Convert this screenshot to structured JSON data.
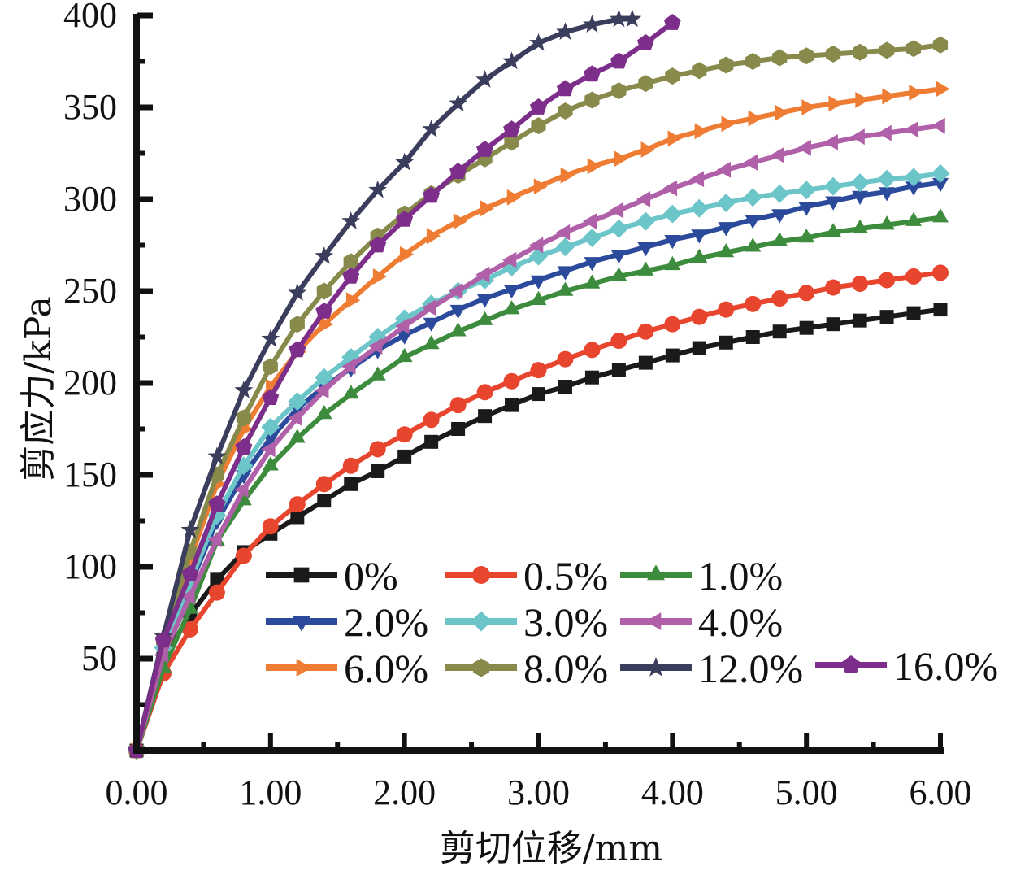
{
  "chart_data": {
    "type": "line",
    "title": "",
    "xlabel": "剪切位移/mm",
    "ylabel": "剪应力/kPa",
    "xlim": [
      0,
      6
    ],
    "ylim": [
      0,
      400
    ],
    "xticks": [
      "0.00",
      "1.00",
      "2.00",
      "3.00",
      "4.00",
      "5.00",
      "6.00"
    ],
    "xtick_values": [
      0,
      1,
      2,
      3,
      4,
      5,
      6
    ],
    "yticks": [
      "50",
      "100",
      "150",
      "200",
      "250",
      "300",
      "350",
      "400"
    ],
    "ytick_values": [
      50,
      100,
      150,
      200,
      250,
      300,
      350,
      400
    ],
    "grid": false,
    "legend_position": "bottom-center",
    "series": [
      {
        "name": "0%",
        "color": "#1a1a1a",
        "marker": "square",
        "x": [
          0,
          0.2,
          0.4,
          0.6,
          0.8,
          1.0,
          1.2,
          1.4,
          1.6,
          1.8,
          2.0,
          2.2,
          2.4,
          2.6,
          2.8,
          3.0,
          3.2,
          3.4,
          3.6,
          3.8,
          4.0,
          4.2,
          4.4,
          4.6,
          4.8,
          5.0,
          5.2,
          5.4,
          5.6,
          5.8,
          6.0
        ],
        "y": [
          0,
          50,
          74,
          93,
          108,
          118,
          127,
          136,
          145,
          152,
          160,
          168,
          175,
          182,
          188,
          194,
          198,
          203,
          207,
          211,
          215,
          219,
          222,
          225,
          228,
          230,
          232,
          234,
          236,
          238,
          240
        ]
      },
      {
        "name": "0.5%",
        "color": "#e8452f",
        "marker": "circle",
        "x": [
          0,
          0.2,
          0.4,
          0.6,
          0.8,
          1.0,
          1.2,
          1.4,
          1.6,
          1.8,
          2.0,
          2.2,
          2.4,
          2.6,
          2.8,
          3.0,
          3.2,
          3.4,
          3.6,
          3.8,
          4.0,
          4.2,
          4.4,
          4.6,
          4.8,
          5.0,
          5.2,
          5.4,
          5.6,
          5.8,
          6.0
        ],
        "y": [
          0,
          42,
          66,
          86,
          106,
          122,
          134,
          145,
          155,
          164,
          172,
          180,
          188,
          195,
          201,
          207,
          213,
          218,
          223,
          228,
          232,
          236,
          240,
          243,
          246,
          249,
          252,
          254,
          256,
          258,
          260
        ]
      },
      {
        "name": "1.0%",
        "color": "#3d8c3d",
        "marker": "triangle-up",
        "x": [
          0,
          0.2,
          0.4,
          0.6,
          0.8,
          1.0,
          1.2,
          1.4,
          1.6,
          1.8,
          2.0,
          2.2,
          2.4,
          2.6,
          2.8,
          3.0,
          3.2,
          3.4,
          3.6,
          3.8,
          4.0,
          4.2,
          4.4,
          4.6,
          4.8,
          5.0,
          5.2,
          5.4,
          5.6,
          5.8,
          6.0
        ],
        "y": [
          0,
          45,
          77,
          114,
          136,
          155,
          170,
          183,
          194,
          204,
          214,
          221,
          228,
          234,
          240,
          245,
          250,
          254,
          258,
          261,
          264,
          268,
          271,
          274,
          277,
          279,
          282,
          284,
          286,
          288,
          290
        ]
      },
      {
        "name": "2.0%",
        "color": "#2b4a9c",
        "marker": "triangle-down",
        "x": [
          0,
          0.2,
          0.4,
          0.6,
          0.8,
          1.0,
          1.2,
          1.4,
          1.6,
          1.8,
          2.0,
          2.2,
          2.4,
          2.6,
          2.8,
          3.0,
          3.2,
          3.4,
          3.6,
          3.8,
          4.0,
          4.2,
          4.4,
          4.6,
          4.8,
          5.0,
          5.2,
          5.4,
          5.6,
          5.8,
          6.0
        ],
        "y": [
          0,
          58,
          90,
          125,
          150,
          170,
          186,
          198,
          208,
          218,
          226,
          233,
          240,
          246,
          251,
          256,
          261,
          266,
          270,
          274,
          278,
          281,
          285,
          289,
          292,
          296,
          299,
          302,
          304,
          307,
          309
        ]
      },
      {
        "name": "3.0%",
        "color": "#6cc5c8",
        "marker": "diamond",
        "x": [
          0,
          0.2,
          0.4,
          0.6,
          0.8,
          1.0,
          1.2,
          1.4,
          1.6,
          1.8,
          2.0,
          2.2,
          2.4,
          2.6,
          2.8,
          3.0,
          3.2,
          3.4,
          3.6,
          3.8,
          4.0,
          4.2,
          4.4,
          4.6,
          4.8,
          5.0,
          5.2,
          5.4,
          5.6,
          5.8,
          6.0
        ],
        "y": [
          0,
          56,
          92,
          128,
          155,
          176,
          190,
          203,
          214,
          225,
          235,
          243,
          250,
          256,
          263,
          269,
          274,
          279,
          284,
          288,
          292,
          295,
          298,
          301,
          303,
          305,
          307,
          309,
          311,
          312,
          314
        ]
      },
      {
        "name": "4.0%",
        "color": "#b060a8",
        "marker": "triangle-left",
        "x": [
          0,
          0.2,
          0.4,
          0.6,
          0.8,
          1.0,
          1.2,
          1.4,
          1.6,
          1.8,
          2.0,
          2.2,
          2.4,
          2.6,
          2.8,
          3.0,
          3.2,
          3.4,
          3.6,
          3.8,
          4.0,
          4.2,
          4.4,
          4.6,
          4.8,
          5.0,
          5.2,
          5.4,
          5.6,
          5.8,
          6.0
        ],
        "y": [
          0,
          52,
          84,
          115,
          142,
          164,
          181,
          196,
          209,
          220,
          231,
          241,
          250,
          259,
          267,
          275,
          282,
          288,
          294,
          300,
          306,
          311,
          316,
          320,
          324,
          328,
          331,
          334,
          336,
          338,
          340
        ]
      },
      {
        "name": "6.0%",
        "color": "#ee7d33",
        "marker": "triangle-right",
        "x": [
          0,
          0.2,
          0.4,
          0.6,
          0.8,
          1.0,
          1.2,
          1.4,
          1.6,
          1.8,
          2.0,
          2.2,
          2.4,
          2.6,
          2.8,
          3.0,
          3.2,
          3.4,
          3.6,
          3.8,
          4.0,
          4.2,
          4.4,
          4.6,
          4.8,
          5.0,
          5.2,
          5.4,
          5.6,
          5.8,
          6.0
        ],
        "y": [
          0,
          60,
          104,
          145,
          175,
          198,
          217,
          232,
          245,
          258,
          270,
          280,
          288,
          295,
          301,
          307,
          313,
          318,
          322,
          327,
          333,
          337,
          341,
          344,
          347,
          350,
          352,
          354,
          356,
          358,
          360
        ]
      },
      {
        "name": "8.0%",
        "color": "#878a4a",
        "marker": "hexagon",
        "x": [
          0,
          0.2,
          0.4,
          0.6,
          0.8,
          1.0,
          1.2,
          1.4,
          1.6,
          1.8,
          2.0,
          2.2,
          2.4,
          2.6,
          2.8,
          3.0,
          3.2,
          3.4,
          3.6,
          3.8,
          4.0,
          4.2,
          4.4,
          4.6,
          4.8,
          5.0,
          5.2,
          5.4,
          5.6,
          5.8,
          6.0
        ],
        "y": [
          0,
          60,
          108,
          150,
          181,
          209,
          232,
          250,
          266,
          280,
          292,
          303,
          313,
          322,
          331,
          340,
          348,
          354,
          359,
          363,
          367,
          370,
          373,
          375,
          377,
          378,
          379,
          380,
          381,
          382,
          384
        ]
      },
      {
        "name": "12.0%",
        "color": "#3a3d5c",
        "marker": "star",
        "x": [
          0,
          0.2,
          0.4,
          0.6,
          0.8,
          1.0,
          1.2,
          1.4,
          1.6,
          1.8,
          2.0,
          2.2,
          2.4,
          2.6,
          2.8,
          3.0,
          3.2,
          3.4,
          3.6,
          3.7
        ],
        "y": [
          0,
          62,
          120,
          160,
          196,
          224,
          249,
          269,
          288,
          305,
          320,
          338,
          352,
          365,
          375,
          385,
          391,
          395,
          398,
          398
        ]
      },
      {
        "name": "16.0%",
        "color": "#7d2e8a",
        "marker": "pentagon",
        "x": [
          0,
          0.2,
          0.4,
          0.6,
          0.8,
          1.0,
          1.2,
          1.4,
          1.6,
          1.8,
          2.0,
          2.2,
          2.4,
          2.6,
          2.8,
          3.0,
          3.2,
          3.4,
          3.6,
          3.8,
          4.0
        ],
        "y": [
          0,
          60,
          96,
          134,
          165,
          192,
          218,
          239,
          258,
          275,
          289,
          302,
          315,
          327,
          338,
          350,
          360,
          368,
          375,
          385,
          396
        ]
      }
    ]
  }
}
